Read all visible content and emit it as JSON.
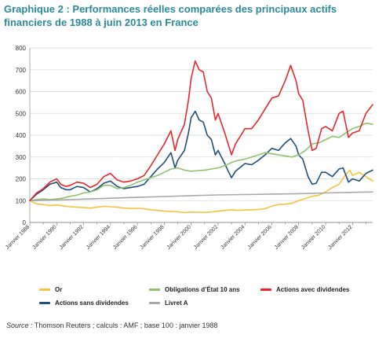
{
  "title": "Graphique 2 : Performances réelles comparées des principaux actifs financiers de 1988 à juin 2013 en France",
  "source": {
    "label": "Source :",
    "text": " Thomson Reuters ; calculs : AMF ; base 100 : janvier 1988"
  },
  "colors": {
    "or": "#f7c23e",
    "obligations": "#8dc26f",
    "actions_avec": "#e8262b",
    "actions_sans": "#1f4f7a",
    "livret": "#a8a8a8",
    "grid": "#d9d9d9"
  },
  "chart_data": {
    "type": "line",
    "title": "Graphique 2 : Performances réelles comparées des principaux actifs financiers de 1988 à juin 2013 en France",
    "xlabel": "",
    "ylabel": "",
    "ylim": [
      0,
      800
    ],
    "xlim": [
      1988.0,
      2013.5
    ],
    "yticks": [
      0,
      100,
      200,
      300,
      400,
      500,
      600,
      700,
      800
    ],
    "xticks": [
      {
        "x": 1988,
        "label": "Janvier 1988"
      },
      {
        "x": 1990,
        "label": "Janvier 1990"
      },
      {
        "x": 1992,
        "label": "Janvier 1992"
      },
      {
        "x": 1994,
        "label": "Janvier 1994"
      },
      {
        "x": 1996,
        "label": "Janvier 1996"
      },
      {
        "x": 1998,
        "label": "Janvier 1998"
      },
      {
        "x": 2000,
        "label": "Janvier 2000"
      },
      {
        "x": 2002,
        "label": "Janvier 2002"
      },
      {
        "x": 2004,
        "label": "Janvier 2004"
      },
      {
        "x": 2006,
        "label": "Janvier 2006"
      },
      {
        "x": 2008,
        "label": "Janvier 2008"
      },
      {
        "x": 2010,
        "label": "Janvier 2010"
      },
      {
        "x": 2012,
        "label": "Janvier 2012"
      }
    ],
    "grid": "horizontal",
    "legend_position": "bottom",
    "series": [
      {
        "name": "Or",
        "color": "#f7c23e",
        "points": [
          [
            1988.0,
            100
          ],
          [
            1988.5,
            85
          ],
          [
            1989.0,
            82
          ],
          [
            1989.5,
            78
          ],
          [
            1990.0,
            80
          ],
          [
            1990.5,
            76
          ],
          [
            1991.0,
            72
          ],
          [
            1991.5,
            70
          ],
          [
            1992.0,
            68
          ],
          [
            1992.5,
            66
          ],
          [
            1993.0,
            70
          ],
          [
            1993.5,
            74
          ],
          [
            1994.0,
            72
          ],
          [
            1994.5,
            70
          ],
          [
            1995.0,
            66
          ],
          [
            1995.5,
            64
          ],
          [
            1996.0,
            65
          ],
          [
            1996.5,
            63
          ],
          [
            1997.0,
            58
          ],
          [
            1997.5,
            55
          ],
          [
            1998.0,
            52
          ],
          [
            1998.5,
            50
          ],
          [
            1999.0,
            49
          ],
          [
            1999.5,
            45
          ],
          [
            2000.0,
            48
          ],
          [
            2000.5,
            47
          ],
          [
            2001.0,
            46
          ],
          [
            2001.5,
            48
          ],
          [
            2002.0,
            52
          ],
          [
            2002.5,
            55
          ],
          [
            2003.0,
            58
          ],
          [
            2003.5,
            56
          ],
          [
            2004.0,
            57
          ],
          [
            2004.5,
            58
          ],
          [
            2005.0,
            60
          ],
          [
            2005.5,
            63
          ],
          [
            2006.0,
            75
          ],
          [
            2006.5,
            82
          ],
          [
            2007.0,
            84
          ],
          [
            2007.5,
            88
          ],
          [
            2008.0,
            100
          ],
          [
            2008.5,
            110
          ],
          [
            2009.0,
            120
          ],
          [
            2009.5,
            125
          ],
          [
            2010.0,
            140
          ],
          [
            2010.5,
            160
          ],
          [
            2011.0,
            175
          ],
          [
            2011.5,
            220
          ],
          [
            2011.8,
            240
          ],
          [
            2012.0,
            215
          ],
          [
            2012.5,
            230
          ],
          [
            2013.0,
            210
          ],
          [
            2013.5,
            190
          ]
        ]
      },
      {
        "name": "Actions sans dividendes",
        "color": "#1f4f7a",
        "points": [
          [
            1988.0,
            100
          ],
          [
            1988.5,
            130
          ],
          [
            1989.0,
            150
          ],
          [
            1989.5,
            175
          ],
          [
            1990.0,
            185
          ],
          [
            1990.3,
            160
          ],
          [
            1990.7,
            150
          ],
          [
            1991.0,
            150
          ],
          [
            1991.5,
            165
          ],
          [
            1992.0,
            160
          ],
          [
            1992.5,
            140
          ],
          [
            1993.0,
            155
          ],
          [
            1993.5,
            180
          ],
          [
            1994.0,
            190
          ],
          [
            1994.5,
            165
          ],
          [
            1995.0,
            155
          ],
          [
            1995.5,
            160
          ],
          [
            1996.0,
            165
          ],
          [
            1996.5,
            175
          ],
          [
            1997.0,
            210
          ],
          [
            1997.5,
            245
          ],
          [
            1998.0,
            275
          ],
          [
            1998.5,
            320
          ],
          [
            1998.8,
            250
          ],
          [
            1999.0,
            285
          ],
          [
            1999.5,
            330
          ],
          [
            1999.8,
            410
          ],
          [
            2000.0,
            480
          ],
          [
            2000.3,
            510
          ],
          [
            2000.6,
            470
          ],
          [
            2000.9,
            460
          ],
          [
            2001.2,
            400
          ],
          [
            2001.5,
            380
          ],
          [
            2001.8,
            310
          ],
          [
            2002.0,
            330
          ],
          [
            2002.5,
            270
          ],
          [
            2002.8,
            230
          ],
          [
            2003.0,
            205
          ],
          [
            2003.3,
            235
          ],
          [
            2003.7,
            255
          ],
          [
            2004.0,
            270
          ],
          [
            2004.5,
            265
          ],
          [
            2005.0,
            285
          ],
          [
            2005.5,
            310
          ],
          [
            2006.0,
            340
          ],
          [
            2006.5,
            330
          ],
          [
            2007.0,
            365
          ],
          [
            2007.4,
            385
          ],
          [
            2007.8,
            350
          ],
          [
            2008.0,
            310
          ],
          [
            2008.3,
            290
          ],
          [
            2008.7,
            210
          ],
          [
            2009.0,
            175
          ],
          [
            2009.3,
            180
          ],
          [
            2009.7,
            230
          ],
          [
            2010.0,
            230
          ],
          [
            2010.5,
            210
          ],
          [
            2011.0,
            245
          ],
          [
            2011.3,
            250
          ],
          [
            2011.7,
            185
          ],
          [
            2012.0,
            200
          ],
          [
            2012.5,
            190
          ],
          [
            2013.0,
            225
          ],
          [
            2013.5,
            240
          ]
        ]
      },
      {
        "name": "Obligations d’État 10 ans",
        "color": "#8dc26f",
        "points": [
          [
            1988.0,
            100
          ],
          [
            1988.5,
            105
          ],
          [
            1989.0,
            108
          ],
          [
            1989.5,
            105
          ],
          [
            1990.0,
            108
          ],
          [
            1990.5,
            112
          ],
          [
            1991.0,
            120
          ],
          [
            1991.5,
            125
          ],
          [
            1992.0,
            135
          ],
          [
            1992.5,
            140
          ],
          [
            1993.0,
            150
          ],
          [
            1993.5,
            170
          ],
          [
            1994.0,
            170
          ],
          [
            1994.5,
            155
          ],
          [
            1995.0,
            160
          ],
          [
            1995.5,
            170
          ],
          [
            1996.0,
            185
          ],
          [
            1996.5,
            195
          ],
          [
            1997.0,
            205
          ],
          [
            1997.5,
            215
          ],
          [
            1998.0,
            230
          ],
          [
            1998.5,
            245
          ],
          [
            1999.0,
            250
          ],
          [
            1999.5,
            240
          ],
          [
            2000.0,
            235
          ],
          [
            2000.5,
            238
          ],
          [
            2001.0,
            240
          ],
          [
            2001.5,
            245
          ],
          [
            2002.0,
            250
          ],
          [
            2002.5,
            260
          ],
          [
            2003.0,
            275
          ],
          [
            2003.5,
            285
          ],
          [
            2004.0,
            290
          ],
          [
            2004.5,
            300
          ],
          [
            2005.0,
            310
          ],
          [
            2005.5,
            320
          ],
          [
            2006.0,
            315
          ],
          [
            2006.5,
            310
          ],
          [
            2007.0,
            305
          ],
          [
            2007.5,
            300
          ],
          [
            2008.0,
            310
          ],
          [
            2008.5,
            330
          ],
          [
            2009.0,
            360
          ],
          [
            2009.5,
            365
          ],
          [
            2010.0,
            380
          ],
          [
            2010.5,
            395
          ],
          [
            2011.0,
            390
          ],
          [
            2011.5,
            410
          ],
          [
            2012.0,
            430
          ],
          [
            2012.5,
            440
          ],
          [
            2013.0,
            455
          ],
          [
            2013.5,
            450
          ]
        ]
      },
      {
        "name": "Livret A",
        "color": "#a8a8a8",
        "points": [
          [
            1988.0,
            100
          ],
          [
            1990.0,
            103
          ],
          [
            1992.0,
            107
          ],
          [
            1994.0,
            111
          ],
          [
            1996.0,
            115
          ],
          [
            1998.0,
            119
          ],
          [
            2000.0,
            123
          ],
          [
            2002.0,
            126
          ],
          [
            2004.0,
            128
          ],
          [
            2006.0,
            130
          ],
          [
            2008.0,
            132
          ],
          [
            2010.0,
            135
          ],
          [
            2012.0,
            138
          ],
          [
            2013.5,
            140
          ]
        ]
      },
      {
        "name": "Actions avec dividendes",
        "color": "#e8262b",
        "points": [
          [
            1988.0,
            100
          ],
          [
            1988.5,
            135
          ],
          [
            1989.0,
            155
          ],
          [
            1989.5,
            185
          ],
          [
            1990.0,
            200
          ],
          [
            1990.3,
            175
          ],
          [
            1990.7,
            165
          ],
          [
            1991.0,
            170
          ],
          [
            1991.5,
            185
          ],
          [
            1992.0,
            180
          ],
          [
            1992.5,
            160
          ],
          [
            1993.0,
            175
          ],
          [
            1993.5,
            210
          ],
          [
            1994.0,
            225
          ],
          [
            1994.5,
            195
          ],
          [
            1995.0,
            185
          ],
          [
            1995.5,
            190
          ],
          [
            1996.0,
            200
          ],
          [
            1996.5,
            215
          ],
          [
            1997.0,
            260
          ],
          [
            1997.5,
            310
          ],
          [
            1998.0,
            360
          ],
          [
            1998.5,
            420
          ],
          [
            1998.8,
            330
          ],
          [
            1999.0,
            380
          ],
          [
            1999.5,
            450
          ],
          [
            1999.8,
            560
          ],
          [
            2000.0,
            660
          ],
          [
            2000.3,
            740
          ],
          [
            2000.6,
            700
          ],
          [
            2000.9,
            690
          ],
          [
            2001.2,
            600
          ],
          [
            2001.5,
            570
          ],
          [
            2001.8,
            470
          ],
          [
            2002.0,
            500
          ],
          [
            2002.5,
            410
          ],
          [
            2002.8,
            350
          ],
          [
            2003.0,
            310
          ],
          [
            2003.3,
            360
          ],
          [
            2003.7,
            400
          ],
          [
            2004.0,
            430
          ],
          [
            2004.5,
            430
          ],
          [
            2005.0,
            470
          ],
          [
            2005.5,
            520
          ],
          [
            2006.0,
            570
          ],
          [
            2006.5,
            580
          ],
          [
            2007.0,
            650
          ],
          [
            2007.4,
            720
          ],
          [
            2007.8,
            650
          ],
          [
            2008.0,
            590
          ],
          [
            2008.3,
            560
          ],
          [
            2008.7,
            420
          ],
          [
            2009.0,
            330
          ],
          [
            2009.3,
            340
          ],
          [
            2009.7,
            430
          ],
          [
            2010.0,
            440
          ],
          [
            2010.5,
            420
          ],
          [
            2011.0,
            500
          ],
          [
            2011.3,
            510
          ],
          [
            2011.7,
            390
          ],
          [
            2012.0,
            410
          ],
          [
            2012.5,
            420
          ],
          [
            2013.0,
            500
          ],
          [
            2013.5,
            540
          ]
        ]
      }
    ]
  },
  "legend": {
    "items": [
      {
        "label": "Or",
        "color": "#f7c23e"
      },
      {
        "label": "Obligations d’État 10 ans",
        "color": "#8dc26f"
      },
      {
        "label": "Actions avec dividendes",
        "color": "#e8262b"
      },
      {
        "label": "Actions sans dividendes",
        "color": "#1f4f7a"
      },
      {
        "label": "Livret A",
        "color": "#a8a8a8"
      }
    ]
  }
}
